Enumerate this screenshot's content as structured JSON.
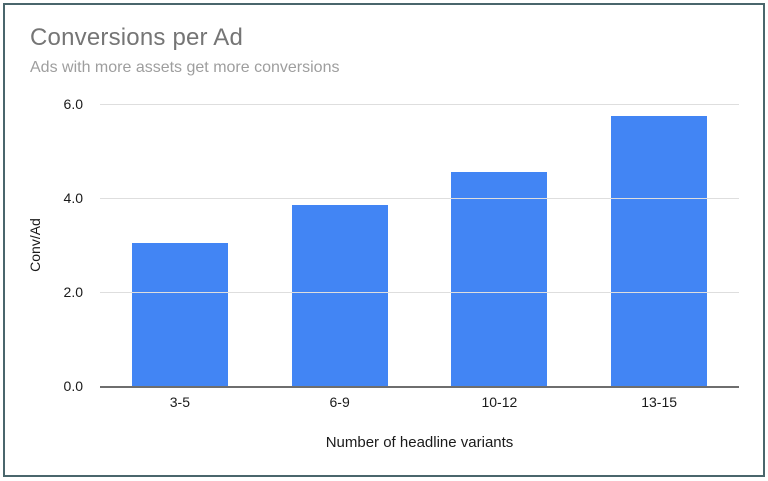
{
  "frame": {
    "border_color": "#4a666c",
    "background": "#ffffff"
  },
  "chart_data": {
    "type": "bar",
    "title": "Conversions per Ad",
    "subtitle": "Ads with more assets get more conversions",
    "categories": [
      "3-5",
      "6-9",
      "10-12",
      "13-15"
    ],
    "values": [
      3.05,
      3.85,
      4.55,
      5.75
    ],
    "xlabel": "Number of headline variants",
    "ylabel": "Conv/Ad",
    "ylim": [
      0,
      6
    ],
    "yticks_top_to_bottom": [
      "6.0",
      "4.0",
      "2.0",
      "0.0"
    ],
    "grid": true,
    "legend": "none",
    "bar_color": "#4285f4",
    "gridline_color": "#dedede",
    "axis_line_color": "#6e6e6e",
    "title_color": "#757575",
    "subtitle_color": "#9e9e9e",
    "tick_label_color": "#1a1a1a"
  }
}
